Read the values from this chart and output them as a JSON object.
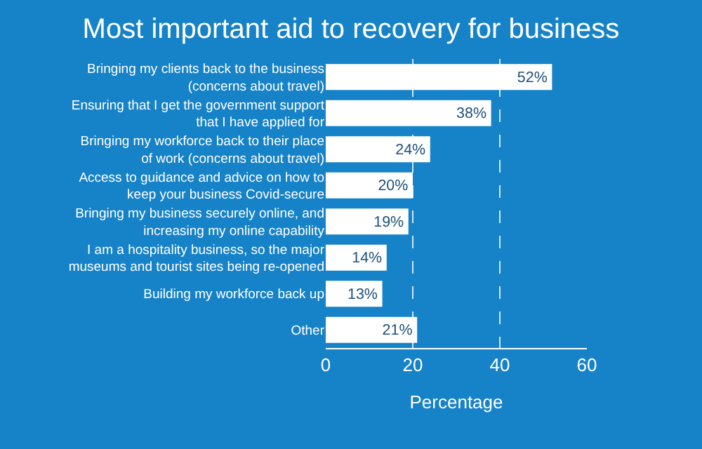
{
  "chart_data": {
    "type": "bar",
    "orientation": "horizontal",
    "title": "Most important aid to recovery for business",
    "xlabel": "Percentage",
    "categories": [
      "Bringing my clients back to the business (concerns about travel)",
      "Ensuring that I get the government support that I have applied for",
      "Bringing my workforce back to their place of work (concerns about travel)",
      "Access to guidance and advice on how to keep your business Covid-secure",
      "Bringing my business securely online, and increasing my online capability",
      "I am a hospitality business, so the major museums and tourist sites being re-opened",
      "Building my workforce back up",
      "Other"
    ],
    "values": [
      52,
      38,
      24,
      20,
      19,
      14,
      13,
      21
    ],
    "value_labels": [
      "52%",
      "38%",
      "24%",
      "20%",
      "19%",
      "14%",
      "13%",
      "21%"
    ],
    "color": "#ffffff",
    "xlim": [
      0,
      60
    ],
    "xticks": [
      0,
      20,
      40,
      60
    ],
    "grid": "x",
    "legend": false
  }
}
